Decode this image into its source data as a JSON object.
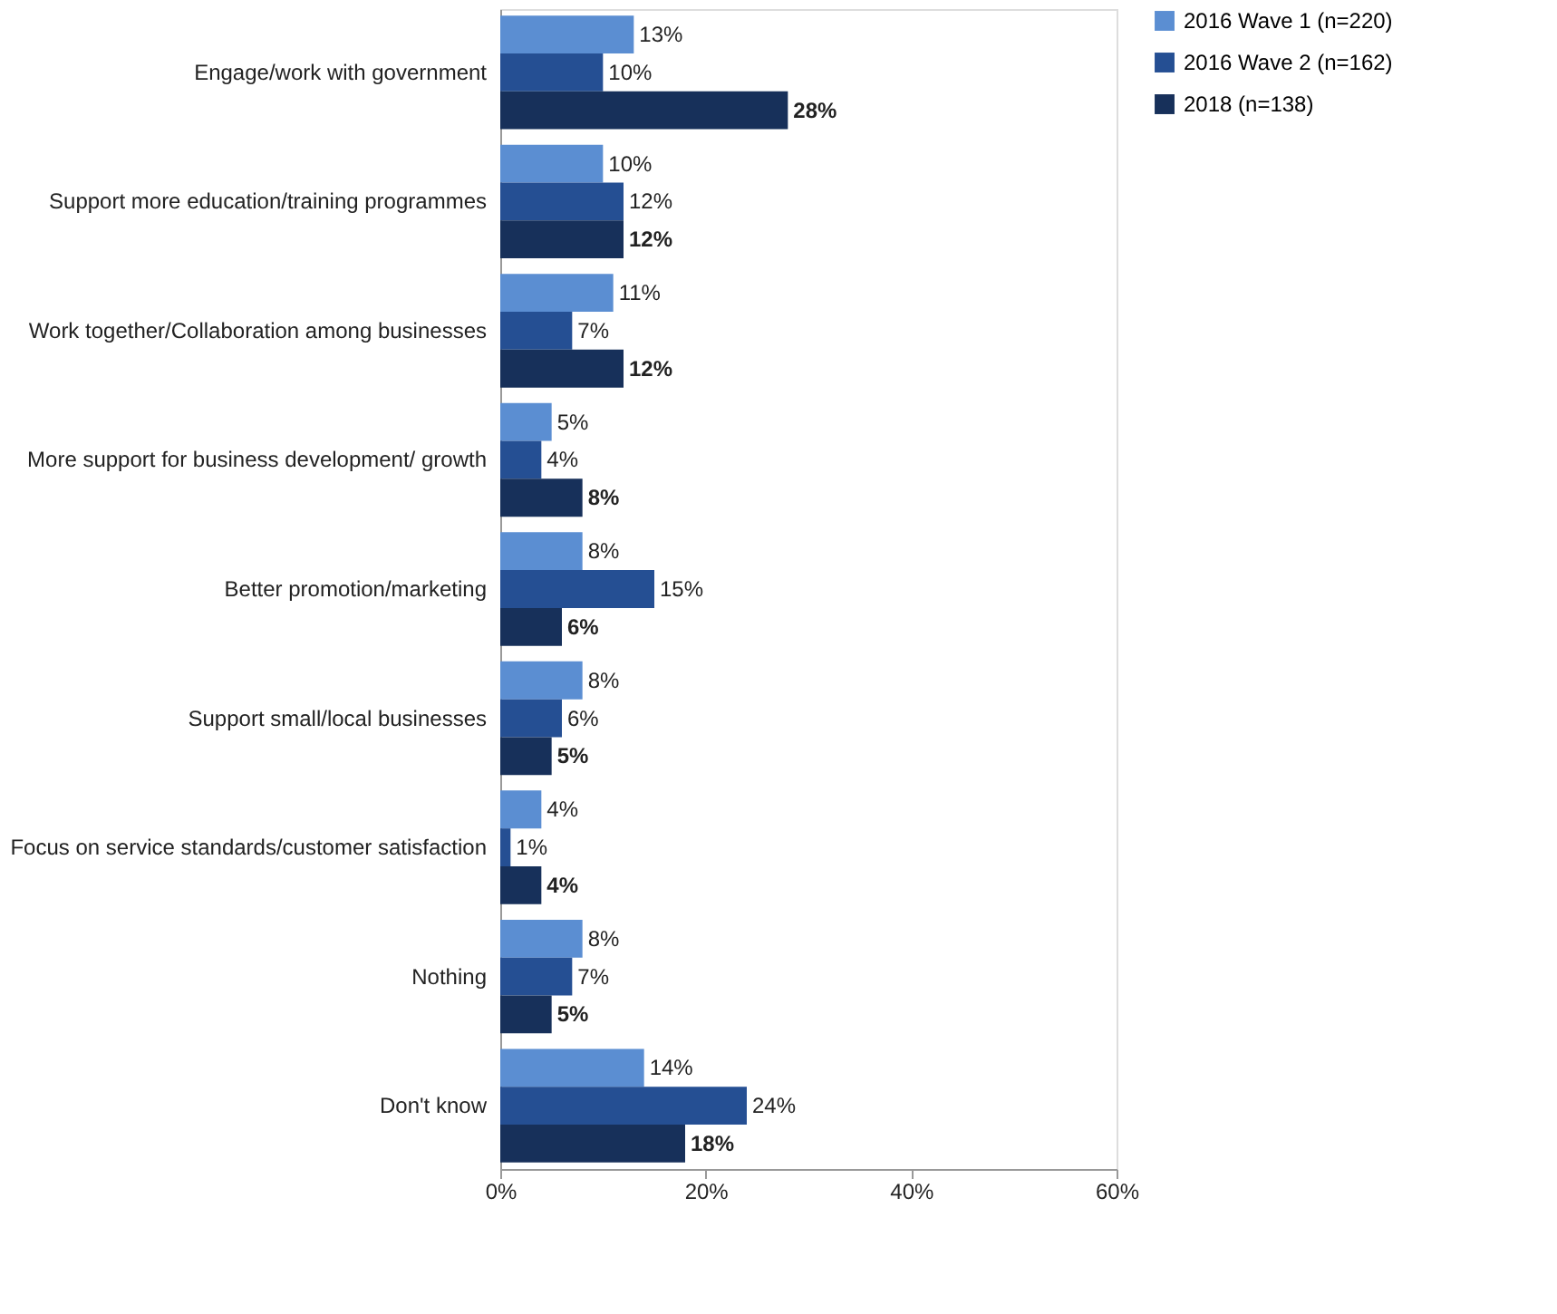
{
  "chart_data": {
    "type": "bar",
    "orientation": "horizontal",
    "categories": [
      "Engage/work with government",
      "Support more education/training programmes",
      "Work together/Collaboration among businesses",
      "More support for business development/ growth",
      "Better promotion/marketing",
      "Support small/local businesses",
      "Focus on service standards/customer satisfaction",
      "Nothing",
      "Don't know"
    ],
    "series": [
      {
        "name": "2016 Wave 1 (n=220)",
        "color": "#5b8ed2",
        "values": [
          13,
          10,
          11,
          5,
          8,
          8,
          4,
          8,
          14
        ],
        "value_labels": [
          "13%",
          "10%",
          "11%",
          "5%",
          "8%",
          "8%",
          "4%",
          "8%",
          "14%"
        ]
      },
      {
        "name": "2016 Wave 2 (n=162)",
        "color": "#254f93",
        "values": [
          10,
          12,
          7,
          4,
          15,
          6,
          1,
          7,
          24
        ],
        "value_labels": [
          "10%",
          "12%",
          "7%",
          "4%",
          "15%",
          "6%",
          "1%",
          "7%",
          "24%"
        ]
      },
      {
        "name": "2018 (n=138)",
        "color": "#17305a",
        "values": [
          28,
          12,
          12,
          8,
          6,
          5,
          4,
          5,
          18
        ],
        "value_labels": [
          "28%",
          "12%",
          "12%",
          "8%",
          "6%",
          "5%",
          "4%",
          "5%",
          "18%"
        ]
      }
    ],
    "xlim": [
      0,
      60
    ],
    "xticks": [
      {
        "value": 0,
        "label": "0%"
      },
      {
        "value": 20,
        "label": "20%"
      },
      {
        "value": 40,
        "label": "40%"
      },
      {
        "value": 60,
        "label": "60%"
      }
    ],
    "legend": "right",
    "grid": false
  }
}
